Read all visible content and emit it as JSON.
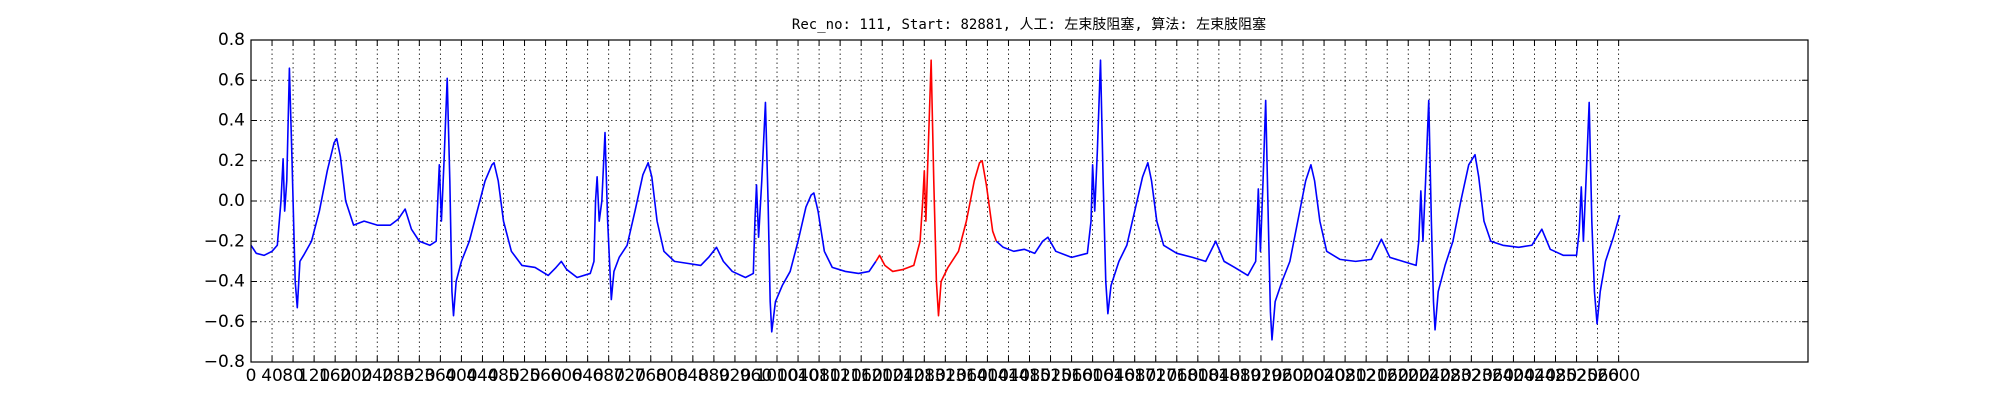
{
  "chart_data": {
    "type": "line",
    "title": "Rec_no: 111, Start: 82881, 人工: 左束肢阻塞, 算法: 左束肢阻塞",
    "xlim": [
      0,
      2960
    ],
    "ylim": [
      -0.8,
      0.8
    ],
    "xticks": [
      0,
      40,
      80,
      120,
      160,
      200,
      240,
      280,
      320,
      360,
      400,
      440,
      480,
      520,
      560,
      600,
      640,
      680,
      720,
      760,
      800,
      840,
      880,
      920,
      960,
      1000,
      1040,
      1080,
      1120,
      1160,
      1200,
      1240,
      1280,
      1320,
      1360,
      1400,
      1440,
      1480,
      1520,
      1560,
      1600,
      1640,
      1680,
      1720,
      1760,
      1800,
      1840,
      1880,
      1920,
      1960,
      2000,
      2040,
      2080,
      2120,
      2160,
      2200,
      2240,
      2280,
      2320,
      2360,
      2400,
      2440,
      2480,
      2520,
      2560,
      2600
    ],
    "yticks": [
      {
        "value": -0.8,
        "label": "−0.8"
      },
      {
        "value": -0.6,
        "label": "−0.6"
      },
      {
        "value": -0.4,
        "label": "−0.4"
      },
      {
        "value": -0.2,
        "label": "−0.2"
      },
      {
        "value": 0.0,
        "label": "0.0"
      },
      0.2,
      0.4,
      0.6,
      0.8
    ],
    "grid": true,
    "series": [
      {
        "color": "#0000ff",
        "x": [
          0,
          10,
          25,
          40,
          50,
          57,
          61,
          64,
          68,
          73,
          78,
          84,
          88,
          93,
          100,
          115,
          130,
          145,
          158,
          163,
          170,
          180,
          195,
          215,
          240,
          265,
          280,
          293,
          305,
          320,
          340,
          352,
          355,
          358,
          362,
          367,
          373,
          378,
          382,
          385,
          390,
          400,
          415,
          430,
          445,
          458,
          462,
          470,
          480,
          495,
          515,
          540,
          565,
          580,
          590,
          600,
          620,
          645,
          652,
          655,
          658,
          662,
          667,
          673,
          678,
          685,
          690,
          700,
          715,
          730,
          745,
          755,
          762,
          772,
          785,
          805,
          830,
          855,
          870,
          885,
          898,
          915,
          940,
          955,
          958,
          961,
          965,
          971,
          978,
          983,
          987,
          990,
          997,
          1010,
          1025,
          1040,
          1055,
          1065,
          1070,
          1078,
          1090,
          1105,
          1130,
          1155,
          1175,
          1188
        ],
        "values": [
          -0.22,
          -0.26,
          -0.27,
          -0.25,
          -0.22,
          0.0,
          0.21,
          -0.05,
          0.1,
          0.66,
          0.2,
          -0.4,
          -0.53,
          -0.3,
          -0.27,
          -0.2,
          -0.05,
          0.15,
          0.29,
          0.31,
          0.22,
          0.0,
          -0.12,
          -0.1,
          -0.12,
          -0.12,
          -0.09,
          -0.04,
          -0.14,
          -0.2,
          -0.22,
          -0.2,
          0.0,
          0.18,
          -0.1,
          0.2,
          0.61,
          0.1,
          -0.45,
          -0.57,
          -0.4,
          -0.3,
          -0.2,
          -0.05,
          0.1,
          0.18,
          0.19,
          0.1,
          -0.1,
          -0.25,
          -0.32,
          -0.33,
          -0.37,
          -0.33,
          -0.3,
          -0.34,
          -0.38,
          -0.36,
          -0.3,
          0.0,
          0.12,
          -0.1,
          0.0,
          0.34,
          -0.1,
          -0.49,
          -0.35,
          -0.28,
          -0.22,
          -0.05,
          0.13,
          0.19,
          0.12,
          -0.1,
          -0.25,
          -0.3,
          -0.31,
          -0.32,
          -0.28,
          -0.23,
          -0.3,
          -0.35,
          -0.38,
          -0.36,
          -0.1,
          0.08,
          -0.18,
          0.1,
          0.49,
          0.0,
          -0.5,
          -0.65,
          -0.5,
          -0.42,
          -0.35,
          -0.2,
          -0.03,
          0.03,
          0.04,
          -0.05,
          -0.25,
          -0.33,
          -0.35,
          -0.36,
          -0.35,
          -0.3
        ]
      },
      {
        "color": "#ff0000",
        "x": [
          1188,
          1195,
          1205,
          1220,
          1240,
          1260,
          1272,
          1277,
          1280,
          1283,
          1288,
          1293,
          1298,
          1303,
          1307,
          1312,
          1325,
          1345,
          1360,
          1375,
          1385,
          1390,
          1398,
          1410,
          1417
        ],
        "values": [
          -0.3,
          -0.27,
          -0.32,
          -0.35,
          -0.34,
          -0.32,
          -0.2,
          0.0,
          0.15,
          -0.1,
          0.3,
          0.7,
          0.1,
          -0.4,
          -0.57,
          -0.4,
          -0.33,
          -0.25,
          -0.1,
          0.1,
          0.19,
          0.2,
          0.08,
          -0.15,
          -0.2
        ]
      },
      {
        "color": "#0000ff",
        "x": [
          1417,
          1430,
          1450,
          1470,
          1490,
          1505,
          1515,
          1530,
          1560,
          1590,
          1597,
          1600,
          1604,
          1609,
          1615,
          1620,
          1625,
          1629,
          1635,
          1650,
          1665,
          1680,
          1695,
          1705,
          1712,
          1722,
          1735,
          1760,
          1790,
          1815,
          1834,
          1850,
          1870,
          1895,
          1910,
          1915,
          1919,
          1924,
          1929,
          1934,
          1938,
          1941,
          1947,
          1960,
          1975,
          1990,
          2005,
          2015,
          2022,
          2032,
          2045,
          2070,
          2100,
          2130,
          2149,
          2165,
          2190,
          2215,
          2220,
          2224,
          2228,
          2233,
          2239,
          2244,
          2248,
          2251,
          2257,
          2270,
          2285,
          2300,
          2315,
          2327,
          2334,
          2344,
          2357,
          2380,
          2410,
          2435,
          2454,
          2470,
          2495,
          2520,
          2525,
          2529,
          2533,
          2538,
          2544,
          2549,
          2554,
          2559,
          2565,
          2575,
          2590,
          2602
        ],
        "values": [
          -0.2,
          -0.23,
          -0.25,
          -0.24,
          -0.26,
          -0.2,
          -0.18,
          -0.25,
          -0.28,
          -0.26,
          -0.1,
          0.18,
          -0.05,
          0.25,
          0.7,
          0.1,
          -0.4,
          -0.56,
          -0.42,
          -0.3,
          -0.22,
          -0.05,
          0.12,
          0.19,
          0.1,
          -0.1,
          -0.22,
          -0.26,
          -0.28,
          -0.3,
          -0.2,
          -0.3,
          -0.33,
          -0.37,
          -0.3,
          0.06,
          -0.25,
          0.1,
          0.5,
          -0.1,
          -0.55,
          -0.69,
          -0.5,
          -0.4,
          -0.3,
          -0.1,
          0.1,
          0.18,
          0.1,
          -0.1,
          -0.25,
          -0.29,
          -0.3,
          -0.29,
          -0.19,
          -0.28,
          -0.3,
          -0.32,
          -0.2,
          0.05,
          -0.2,
          0.1,
          0.5,
          -0.1,
          -0.5,
          -0.64,
          -0.45,
          -0.32,
          -0.2,
          0.0,
          0.18,
          0.23,
          0.12,
          -0.1,
          -0.2,
          -0.22,
          -0.23,
          -0.22,
          -0.14,
          -0.24,
          -0.27,
          -0.27,
          -0.15,
          0.07,
          -0.2,
          0.1,
          0.49,
          -0.1,
          -0.45,
          -0.61,
          -0.45,
          -0.3,
          -0.18,
          -0.07
        ]
      }
    ]
  }
}
